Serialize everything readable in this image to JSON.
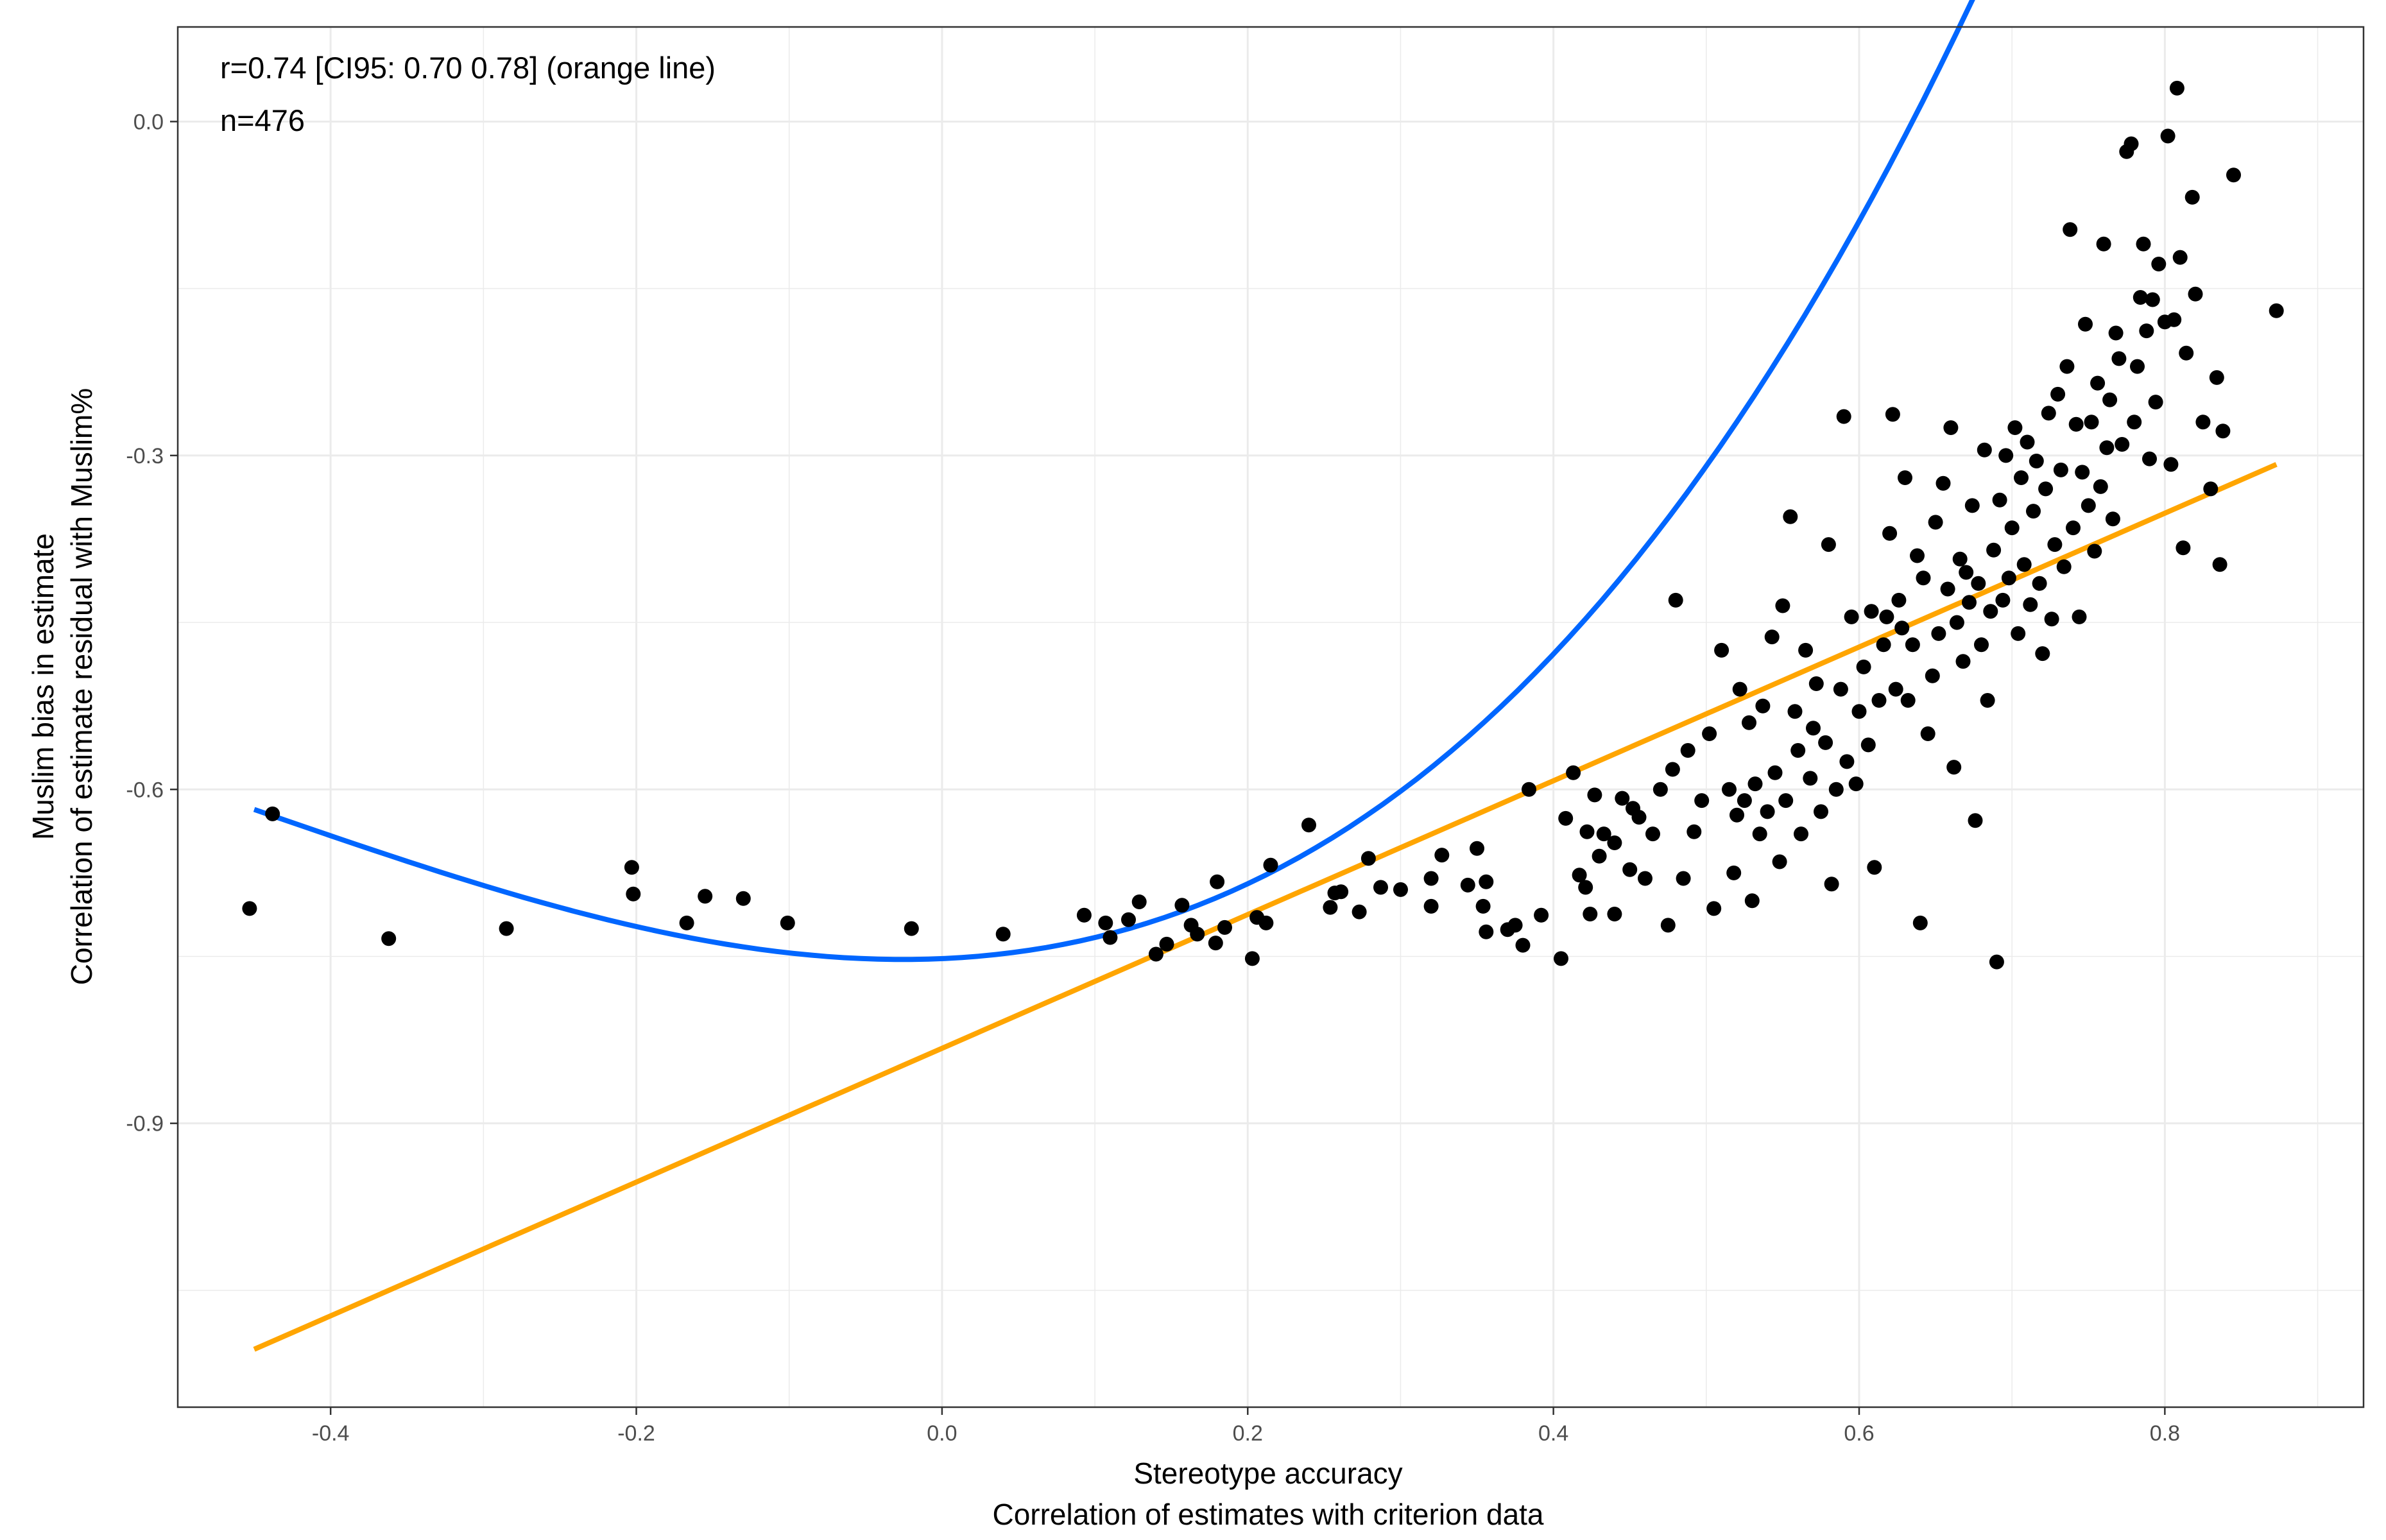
{
  "chart_data": {
    "type": "scatter",
    "title": "",
    "xlabel": "Stereotype accuracy",
    "xlabel_sub": "Correlation of estimates with criterion data",
    "ylabel": "Muslim bias in estimate",
    "ylabel_sub": "Correlation of estimate residual with Muslim%",
    "xlim": [
      -0.5,
      0.93
    ],
    "ylim": [
      -1.155,
      0.085
    ],
    "x_ticks": [
      -0.4,
      -0.2,
      0.0,
      0.2,
      0.4,
      0.6,
      0.8
    ],
    "x_tick_labels": [
      "-0.4",
      "-0.2",
      "0.0",
      "0.2",
      "0.4",
      "0.6",
      "0.8"
    ],
    "y_ticks": [
      0.0,
      -0.3,
      -0.6,
      -0.9
    ],
    "y_tick_labels": [
      "0.0",
      "-0.3",
      "-0.6",
      "-0.9"
    ],
    "grid": true,
    "annotations": [
      "r=0.74 [CI95: 0.70 0.78] (orange line)",
      "n=476"
    ],
    "colors": {
      "points": "#000000",
      "linear_fit": "#FFA500",
      "poly_fit": "#0066FF",
      "grid": "#ebebeb",
      "border": "#333333"
    },
    "linear_fit": {
      "name": "orange line",
      "color": "#FFA500",
      "x": [
        -0.45,
        0.873
      ],
      "y": [
        -1.103,
        -0.308
      ]
    },
    "poly_fit": {
      "name": "blue line",
      "color": "#0066FF",
      "coeffs": [
        -0.752,
        0.06,
        1.2,
        0.9
      ],
      "x_range": [
        -0.45,
        0.873
      ]
    },
    "series": [
      {
        "name": "estimates",
        "color": "#000000",
        "points": [
          [
            -0.453,
            -0.707
          ],
          [
            -0.438,
            -0.622
          ],
          [
            -0.362,
            -0.734
          ],
          [
            -0.285,
            -0.725
          ],
          [
            -0.203,
            -0.67
          ],
          [
            -0.202,
            -0.694
          ],
          [
            -0.167,
            -0.72
          ],
          [
            -0.155,
            -0.696
          ],
          [
            -0.13,
            -0.698
          ],
          [
            -0.101,
            -0.72
          ],
          [
            -0.02,
            -0.725
          ],
          [
            0.04,
            -0.73
          ],
          [
            0.093,
            -0.713
          ],
          [
            0.107,
            -0.72
          ],
          [
            0.11,
            -0.733
          ],
          [
            0.122,
            -0.717
          ],
          [
            0.129,
            -0.701
          ],
          [
            0.14,
            -0.748
          ],
          [
            0.147,
            -0.739
          ],
          [
            0.157,
            -0.704
          ],
          [
            0.163,
            -0.722
          ],
          [
            0.167,
            -0.73
          ],
          [
            0.179,
            -0.738
          ],
          [
            0.18,
            -0.683
          ],
          [
            0.185,
            -0.724
          ],
          [
            0.203,
            -0.752
          ],
          [
            0.206,
            -0.715
          ],
          [
            0.212,
            -0.72
          ],
          [
            0.215,
            -0.668
          ],
          [
            0.24,
            -0.632
          ],
          [
            0.254,
            -0.706
          ],
          [
            0.257,
            -0.693
          ],
          [
            0.261,
            -0.692
          ],
          [
            0.273,
            -0.71
          ],
          [
            0.279,
            -0.662
          ],
          [
            0.287,
            -0.688
          ],
          [
            0.3,
            -0.69
          ],
          [
            0.32,
            -0.705
          ],
          [
            0.32,
            -0.68
          ],
          [
            0.327,
            -0.659
          ],
          [
            0.344,
            -0.686
          ],
          [
            0.35,
            -0.653
          ],
          [
            0.354,
            -0.705
          ],
          [
            0.356,
            -0.728
          ],
          [
            0.356,
            -0.683
          ],
          [
            0.37,
            -0.726
          ],
          [
            0.375,
            -0.722
          ],
          [
            0.38,
            -0.74
          ],
          [
            0.384,
            -0.6
          ],
          [
            0.392,
            -0.713
          ],
          [
            0.405,
            -0.752
          ],
          [
            0.408,
            -0.626
          ],
          [
            0.413,
            -0.585
          ],
          [
            0.417,
            -0.677
          ],
          [
            0.421,
            -0.688
          ],
          [
            0.422,
            -0.638
          ],
          [
            0.424,
            -0.712
          ],
          [
            0.427,
            -0.605
          ],
          [
            0.43,
            -0.66
          ],
          [
            0.433,
            -0.64
          ],
          [
            0.44,
            -0.648
          ],
          [
            0.44,
            -0.712
          ],
          [
            0.445,
            -0.608
          ],
          [
            0.45,
            -0.672
          ],
          [
            0.452,
            -0.617
          ],
          [
            0.456,
            -0.625
          ],
          [
            0.46,
            -0.68
          ],
          [
            0.465,
            -0.64
          ],
          [
            0.47,
            -0.6
          ],
          [
            0.475,
            -0.722
          ],
          [
            0.478,
            -0.582
          ],
          [
            0.48,
            -0.43
          ],
          [
            0.485,
            -0.68
          ],
          [
            0.488,
            -0.565
          ],
          [
            0.492,
            -0.638
          ],
          [
            0.497,
            -0.61
          ],
          [
            0.502,
            -0.55
          ],
          [
            0.505,
            -0.707
          ],
          [
            0.51,
            -0.475
          ],
          [
            0.515,
            -0.6
          ],
          [
            0.518,
            -0.675
          ],
          [
            0.52,
            -0.623
          ],
          [
            0.522,
            -0.51
          ],
          [
            0.525,
            -0.61
          ],
          [
            0.528,
            -0.54
          ],
          [
            0.53,
            -0.7
          ],
          [
            0.532,
            -0.595
          ],
          [
            0.535,
            -0.64
          ],
          [
            0.537,
            -0.525
          ],
          [
            0.54,
            -0.62
          ],
          [
            0.543,
            -0.463
          ],
          [
            0.545,
            -0.585
          ],
          [
            0.548,
            -0.665
          ],
          [
            0.55,
            -0.435
          ],
          [
            0.552,
            -0.61
          ],
          [
            0.555,
            -0.355
          ],
          [
            0.558,
            -0.53
          ],
          [
            0.56,
            -0.565
          ],
          [
            0.562,
            -0.64
          ],
          [
            0.565,
            -0.475
          ],
          [
            0.568,
            -0.59
          ],
          [
            0.57,
            -0.545
          ],
          [
            0.572,
            -0.505
          ],
          [
            0.575,
            -0.62
          ],
          [
            0.578,
            -0.558
          ],
          [
            0.58,
            -0.38
          ],
          [
            0.582,
            -0.685
          ],
          [
            0.585,
            -0.6
          ],
          [
            0.588,
            -0.51
          ],
          [
            0.59,
            -0.265
          ],
          [
            0.592,
            -0.575
          ],
          [
            0.595,
            -0.445
          ],
          [
            0.598,
            -0.595
          ],
          [
            0.6,
            -0.53
          ],
          [
            0.603,
            -0.49
          ],
          [
            0.606,
            -0.56
          ],
          [
            0.608,
            -0.44
          ],
          [
            0.61,
            -0.67
          ],
          [
            0.613,
            -0.52
          ],
          [
            0.616,
            -0.47
          ],
          [
            0.618,
            -0.445
          ],
          [
            0.62,
            -0.37
          ],
          [
            0.622,
            -0.263
          ],
          [
            0.624,
            -0.51
          ],
          [
            0.626,
            -0.43
          ],
          [
            0.628,
            -0.455
          ],
          [
            0.63,
            -0.32
          ],
          [
            0.632,
            -0.52
          ],
          [
            0.635,
            -0.47
          ],
          [
            0.638,
            -0.39
          ],
          [
            0.64,
            -0.72
          ],
          [
            0.642,
            -0.41
          ],
          [
            0.645,
            -0.55
          ],
          [
            0.648,
            -0.498
          ],
          [
            0.65,
            -0.36
          ],
          [
            0.652,
            -0.46
          ],
          [
            0.655,
            -0.325
          ],
          [
            0.658,
            -0.42
          ],
          [
            0.66,
            -0.275
          ],
          [
            0.662,
            -0.58
          ],
          [
            0.664,
            -0.45
          ],
          [
            0.666,
            -0.393
          ],
          [
            0.668,
            -0.485
          ],
          [
            0.67,
            -0.405
          ],
          [
            0.672,
            -0.432
          ],
          [
            0.674,
            -0.345
          ],
          [
            0.676,
            -0.628
          ],
          [
            0.678,
            -0.415
          ],
          [
            0.68,
            -0.47
          ],
          [
            0.682,
            -0.295
          ],
          [
            0.684,
            -0.52
          ],
          [
            0.686,
            -0.44
          ],
          [
            0.688,
            -0.385
          ],
          [
            0.69,
            -0.755
          ],
          [
            0.692,
            -0.34
          ],
          [
            0.694,
            -0.43
          ],
          [
            0.696,
            -0.3
          ],
          [
            0.698,
            -0.41
          ],
          [
            0.7,
            -0.365
          ],
          [
            0.702,
            -0.275
          ],
          [
            0.704,
            -0.46
          ],
          [
            0.706,
            -0.32
          ],
          [
            0.708,
            -0.398
          ],
          [
            0.71,
            -0.288
          ],
          [
            0.712,
            -0.434
          ],
          [
            0.714,
            -0.35
          ],
          [
            0.716,
            -0.305
          ],
          [
            0.718,
            -0.415
          ],
          [
            0.72,
            -0.478
          ],
          [
            0.722,
            -0.33
          ],
          [
            0.724,
            -0.262
          ],
          [
            0.726,
            -0.447
          ],
          [
            0.728,
            -0.38
          ],
          [
            0.73,
            -0.245
          ],
          [
            0.732,
            -0.313
          ],
          [
            0.734,
            -0.4
          ],
          [
            0.736,
            -0.22
          ],
          [
            0.738,
            -0.097
          ],
          [
            0.74,
            -0.365
          ],
          [
            0.742,
            -0.272
          ],
          [
            0.744,
            -0.445
          ],
          [
            0.746,
            -0.315
          ],
          [
            0.748,
            -0.182
          ],
          [
            0.75,
            -0.345
          ],
          [
            0.752,
            -0.27
          ],
          [
            0.754,
            -0.386
          ],
          [
            0.756,
            -0.235
          ],
          [
            0.758,
            -0.328
          ],
          [
            0.76,
            -0.11
          ],
          [
            0.762,
            -0.293
          ],
          [
            0.764,
            -0.25
          ],
          [
            0.766,
            -0.357
          ],
          [
            0.768,
            -0.19
          ],
          [
            0.77,
            -0.213
          ],
          [
            0.772,
            -0.29
          ],
          [
            0.775,
            -0.027
          ],
          [
            0.778,
            -0.02
          ],
          [
            0.78,
            -0.27
          ],
          [
            0.782,
            -0.22
          ],
          [
            0.784,
            -0.158
          ],
          [
            0.786,
            -0.11
          ],
          [
            0.788,
            -0.188
          ],
          [
            0.79,
            -0.303
          ],
          [
            0.792,
            -0.16
          ],
          [
            0.794,
            -0.252
          ],
          [
            0.796,
            -0.128
          ],
          [
            0.8,
            -0.18
          ],
          [
            0.802,
            -0.013
          ],
          [
            0.804,
            -0.308
          ],
          [
            0.806,
            -0.178
          ],
          [
            0.808,
            0.03
          ],
          [
            0.81,
            -0.122
          ],
          [
            0.812,
            -0.383
          ],
          [
            0.814,
            -0.208
          ],
          [
            0.818,
            -0.068
          ],
          [
            0.82,
            -0.155
          ],
          [
            0.825,
            -0.27
          ],
          [
            0.83,
            -0.33
          ],
          [
            0.834,
            -0.23
          ],
          [
            0.836,
            -0.398
          ],
          [
            0.838,
            -0.278
          ],
          [
            0.845,
            -0.048
          ],
          [
            0.873,
            -0.17
          ]
        ]
      }
    ]
  }
}
